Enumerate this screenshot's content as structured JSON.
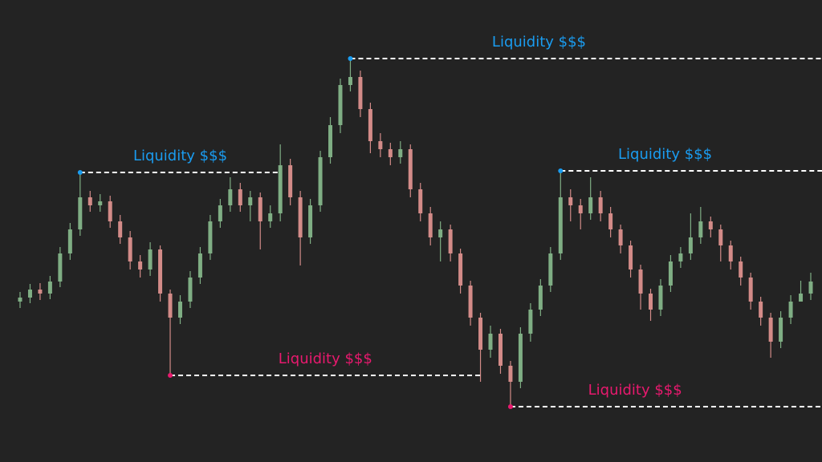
{
  "chart_data": {
    "type": "candlestick",
    "open": [
      200,
      205,
      215,
      210,
      225,
      260,
      290,
      330,
      320,
      325,
      300,
      280,
      250,
      240,
      265,
      210,
      180,
      200,
      230,
      260,
      300,
      320,
      340,
      320,
      330,
      300,
      310,
      370,
      330,
      280,
      320,
      380,
      420,
      470,
      480,
      440,
      400,
      390,
      380,
      390,
      340,
      310,
      280,
      290,
      260,
      220,
      180,
      140,
      160,
      120,
      100,
      160,
      190,
      220,
      260,
      330,
      320,
      310,
      330,
      310,
      290,
      270,
      240,
      210,
      190,
      220,
      250,
      260,
      280,
      300,
      290,
      270,
      250,
      230,
      200,
      180,
      150,
      180,
      200,
      210
    ],
    "high": [
      212,
      222,
      223,
      232,
      268,
      298,
      361,
      338,
      334,
      332,
      308,
      288,
      258,
      274,
      270,
      215,
      208,
      238,
      268,
      308,
      328,
      355,
      348,
      338,
      336,
      320,
      396,
      378,
      338,
      328,
      388,
      430,
      478,
      503,
      488,
      448,
      410,
      398,
      400,
      396,
      348,
      318,
      300,
      296,
      266,
      226,
      186,
      170,
      166,
      126,
      168,
      198,
      228,
      268,
      363,
      340,
      328,
      355,
      338,
      318,
      296,
      276,
      246,
      216,
      228,
      258,
      268,
      310,
      318,
      306,
      296,
      276,
      256,
      236,
      206,
      186,
      188,
      208,
      226,
      236
    ],
    "low": [
      192,
      198,
      202,
      203,
      218,
      252,
      282,
      312,
      312,
      292,
      272,
      240,
      230,
      232,
      200,
      108,
      172,
      192,
      222,
      252,
      292,
      312,
      312,
      300,
      265,
      292,
      300,
      320,
      245,
      272,
      312,
      372,
      410,
      462,
      430,
      385,
      380,
      370,
      372,
      330,
      300,
      270,
      250,
      250,
      210,
      170,
      100,
      130,
      110,
      69,
      92,
      150,
      182,
      212,
      252,
      300,
      290,
      302,
      300,
      280,
      260,
      230,
      190,
      176,
      182,
      212,
      242,
      252,
      272,
      280,
      250,
      240,
      220,
      190,
      170,
      130,
      142,
      172,
      200,
      202
    ],
    "close": [
      205,
      215,
      210,
      225,
      260,
      290,
      330,
      320,
      325,
      300,
      280,
      250,
      240,
      265,
      210,
      180,
      200,
      230,
      260,
      300,
      320,
      340,
      320,
      330,
      300,
      310,
      370,
      330,
      280,
      320,
      380,
      420,
      470,
      480,
      440,
      400,
      390,
      380,
      390,
      340,
      310,
      280,
      290,
      260,
      220,
      180,
      140,
      160,
      120,
      100,
      160,
      190,
      220,
      260,
      330,
      320,
      310,
      330,
      310,
      290,
      270,
      240,
      210,
      190,
      220,
      250,
      260,
      280,
      300,
      290,
      270,
      250,
      230,
      200,
      180,
      150,
      180,
      200,
      210,
      225
    ],
    "up_color": "#7fae84",
    "down_color": "#d38b88",
    "ylim": [
      0,
      576
    ],
    "levels": [
      {
        "label": "Liquidity $$$",
        "value": 361,
        "side": "high",
        "color": "#1a9cf0"
      },
      {
        "label": "Liquidity $$$",
        "value": 503,
        "side": "high",
        "color": "#1a9cf0"
      },
      {
        "label": "Liquidity $$$",
        "value": 363,
        "side": "high",
        "color": "#1a9cf0"
      },
      {
        "label": "Liquidity $$$",
        "value": 108,
        "side": "low",
        "color": "#e8196e"
      },
      {
        "label": "Liquidity $$$",
        "value": 69,
        "side": "low",
        "color": "#e8196e"
      }
    ]
  }
}
